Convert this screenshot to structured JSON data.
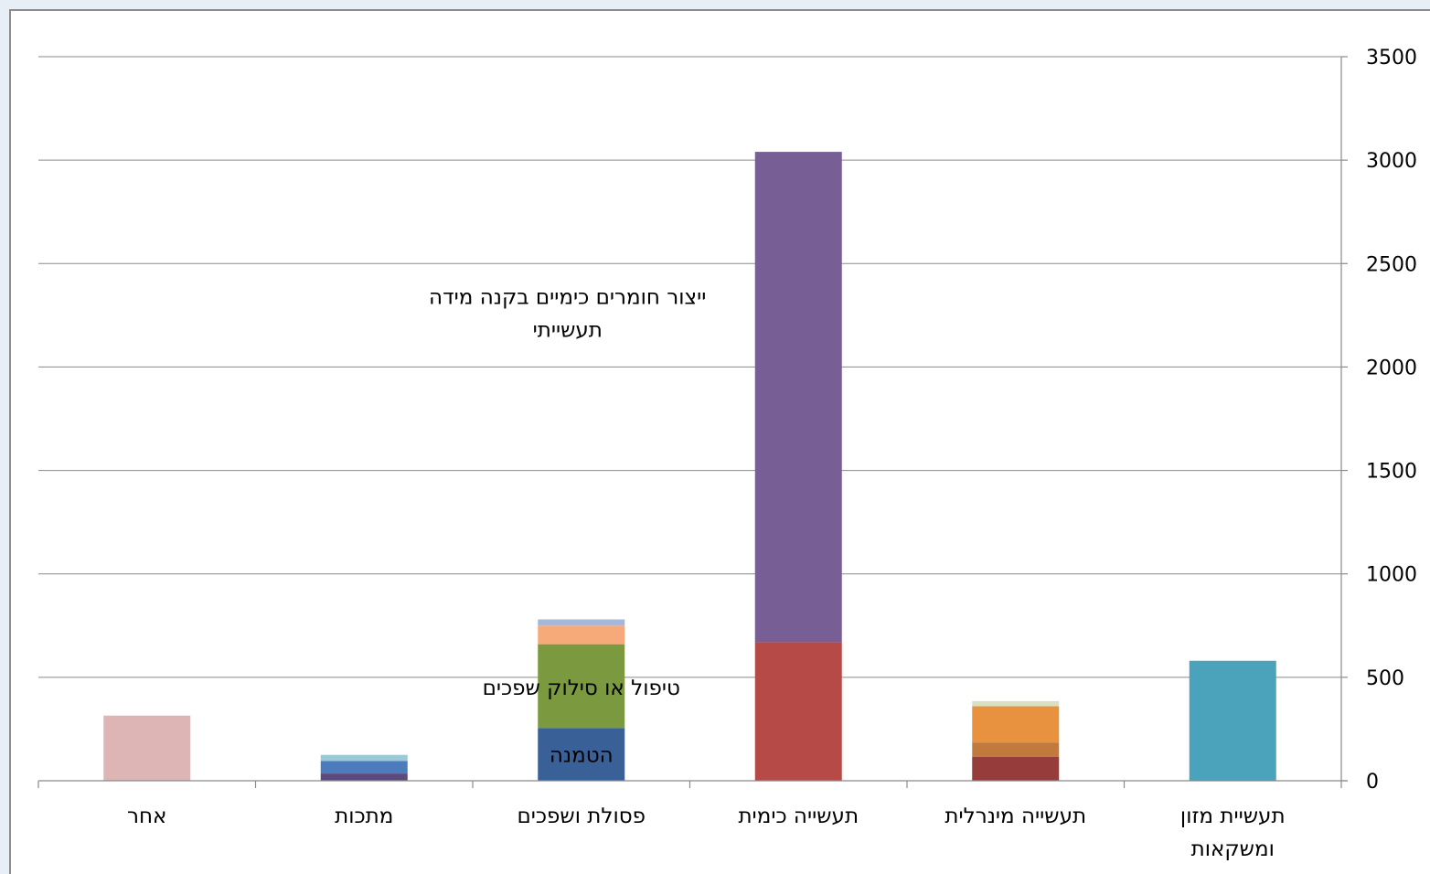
{
  "chart_data": {
    "type": "bar",
    "stacked": true,
    "title": "",
    "xlabel": "",
    "ylabel": "",
    "y_axis_position": "right",
    "ylim": [
      0,
      3500
    ],
    "yticks": [
      0,
      500,
      1000,
      1500,
      2000,
      2500,
      3000,
      3500
    ],
    "ytick_labels": [
      "0",
      "500",
      "1000",
      "1500",
      "2000",
      "2500",
      "3000",
      "3500"
    ],
    "grid": true,
    "legend": "none",
    "categories": [
      {
        "lines": [
          "תעשיית מזון",
          "ומשקאות"
        ]
      },
      {
        "lines": [
          "תעשייה מינרלית"
        ]
      },
      {
        "lines": [
          "תעשייה כימית"
        ]
      },
      {
        "lines": [
          "פסולת ושפכים"
        ]
      },
      {
        "lines": [
          "מתכות"
        ]
      },
      {
        "lines": [
          "אחר"
        ]
      }
    ],
    "stacks": [
      [
        {
          "value": 580,
          "color": "#4aa3bb"
        }
      ],
      [
        {
          "value": 115,
          "color": "#963c3a"
        },
        {
          "value": 70,
          "color": "#c27a3c"
        },
        {
          "value": 175,
          "color": "#e8913f"
        },
        {
          "value": 25,
          "color": "#d7e1c4"
        }
      ],
      [
        {
          "value": 670,
          "color": "#b54a46"
        },
        {
          "value": 2370,
          "color": "#775f96"
        }
      ],
      [
        {
          "value": 255,
          "color": "#3a6197"
        },
        {
          "value": 405,
          "color": "#7b993f"
        },
        {
          "value": 90,
          "color": "#f6aa7a"
        },
        {
          "value": 30,
          "color": "#a6b8d9"
        }
      ],
      [
        {
          "value": 35,
          "color": "#5c4a7c"
        },
        {
          "value": 60,
          "color": "#4d7cbd"
        },
        {
          "value": 30,
          "color": "#9dc8d9"
        }
      ],
      [
        {
          "value": 315,
          "color": "#deb5b5"
        }
      ]
    ],
    "annotations": [
      {
        "lines": [
          "ייצור חומרים כימיים בקנה מידה",
          "תעשייתי"
        ],
        "category_index": 2,
        "near_value": 2340,
        "placement": "left-of-bar"
      },
      {
        "lines": [
          "טיפול או סילוק שפכים"
        ],
        "category_index": 3,
        "near_value": 450,
        "placement": "on-bar"
      },
      {
        "lines": [
          "הטמנה"
        ],
        "category_index": 3,
        "near_value": 125,
        "placement": "on-bar"
      }
    ]
  }
}
